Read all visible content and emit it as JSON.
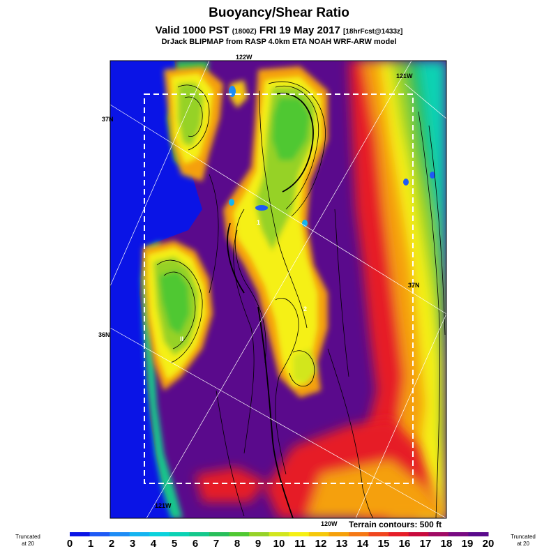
{
  "header": {
    "title": "Buoyancy/Shear Ratio",
    "valid_main": "Valid 1000 PST",
    "valid_zulu": "(1800Z)",
    "valid_date": "FRI 19 May 2017",
    "valid_fcst": "[18hrFcst@1433z]",
    "model_line": "DrJack BLIPMAP from RASP 4.0km ETA NOAH WRF-ARW model"
  },
  "map_labels": {
    "lon_122": "122W",
    "lon_121_top": "121W",
    "lon_121_bottom": "121W",
    "lon_120": "120W",
    "lat_37_left": "37N",
    "lat_37_right": "37N",
    "lat_36": "36N",
    "marker_1": "1",
    "marker_2": "2",
    "marker_ii": "II",
    "terrain": "Terrain contours: 500 ft"
  },
  "legend": {
    "left_trunc_line1": "Truncated",
    "left_trunc_line2": "at 20",
    "right_trunc_line1": "Truncated",
    "right_trunc_line2": "at 20",
    "ticks": [
      "0",
      "1",
      "2",
      "3",
      "4",
      "5",
      "6",
      "7",
      "8",
      "9",
      "10",
      "11",
      "12",
      "13",
      "14",
      "15",
      "16",
      "17",
      "18",
      "19",
      "20"
    ],
    "colors": [
      "#0a14e6",
      "#1e5af5",
      "#1e8cf5",
      "#14b4f0",
      "#0ad2dc",
      "#0ad2b4",
      "#14c88c",
      "#28be5a",
      "#50c832",
      "#96d228",
      "#d2e61e",
      "#f5f014",
      "#f5c80a",
      "#f5a00a",
      "#f57814",
      "#f0461e",
      "#e61e28",
      "#c80a3c",
      "#a00a64",
      "#780a82",
      "#5a0a8c"
    ]
  }
}
